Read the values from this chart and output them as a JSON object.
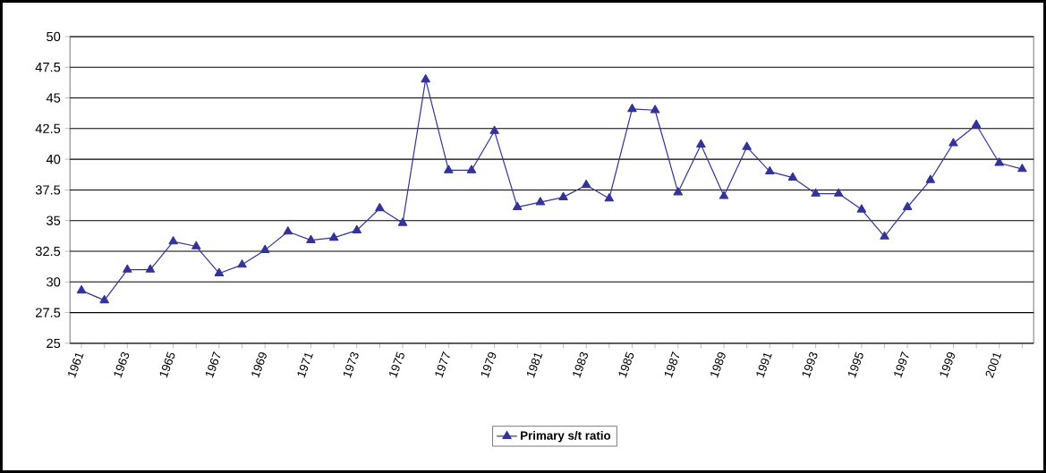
{
  "chart_data": {
    "type": "line",
    "categories": [
      "1961",
      null,
      "1963",
      null,
      "1965",
      null,
      "1967",
      null,
      "1969",
      null,
      "1971",
      null,
      "1973",
      null,
      "1975",
      null,
      "1977",
      null,
      "1979",
      null,
      "1981",
      null,
      "1983",
      null,
      "1985",
      null,
      "1987",
      null,
      "1989",
      null,
      "1991",
      null,
      "1993",
      null,
      "1995",
      null,
      "1997",
      null,
      "1999",
      null,
      "2001",
      null
    ],
    "series": [
      {
        "name": "Primary s/t ratio",
        "color": "#333399",
        "values": [
          29.3,
          28.5,
          31,
          31,
          33.3,
          32.9,
          30.7,
          31.4,
          32.6,
          34.1,
          33.4,
          33.6,
          34.2,
          36,
          34.8,
          46.5,
          39.1,
          39.1,
          42.3,
          36.1,
          36.5,
          36.9,
          37.9,
          36.8,
          44.1,
          44,
          37.3,
          41.2,
          37,
          41,
          39,
          38.5,
          37.2,
          37.2,
          35.9,
          33.7,
          36.1,
          38.3,
          41.3,
          42.8,
          39.7,
          39.2
        ]
      }
    ],
    "ylim": [
      25,
      50
    ],
    "yticks": [
      25,
      27.5,
      30,
      32.5,
      35,
      37.5,
      40,
      42.5,
      45,
      47.5,
      50
    ],
    "grid": "y",
    "legend": "bottom",
    "marker": "triangle"
  }
}
